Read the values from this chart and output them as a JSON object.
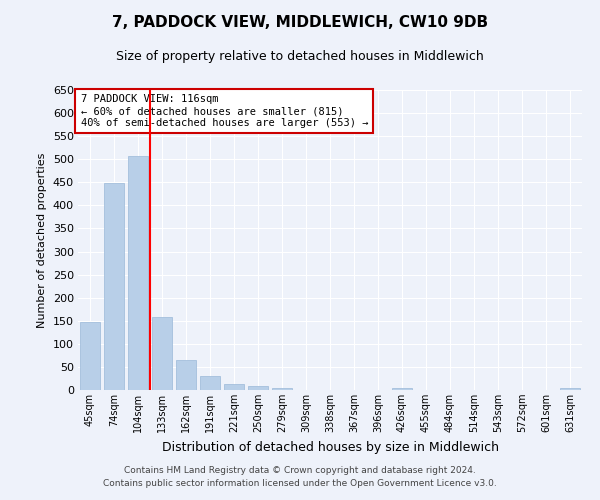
{
  "title": "7, PADDOCK VIEW, MIDDLEWICH, CW10 9DB",
  "subtitle": "Size of property relative to detached houses in Middlewich",
  "xlabel": "Distribution of detached houses by size in Middlewich",
  "ylabel": "Number of detached properties",
  "categories": [
    "45sqm",
    "74sqm",
    "104sqm",
    "133sqm",
    "162sqm",
    "191sqm",
    "221sqm",
    "250sqm",
    "279sqm",
    "309sqm",
    "338sqm",
    "367sqm",
    "396sqm",
    "426sqm",
    "455sqm",
    "484sqm",
    "514sqm",
    "543sqm",
    "572sqm",
    "601sqm",
    "631sqm"
  ],
  "values": [
    148,
    449,
    507,
    158,
    65,
    30,
    12,
    8,
    4,
    0,
    0,
    0,
    0,
    5,
    0,
    0,
    0,
    0,
    0,
    0,
    5
  ],
  "bar_color": "#b8cfe8",
  "bar_edge_color": "#9ab8d8",
  "red_line_x": 2.5,
  "annotation_title": "7 PADDOCK VIEW: 116sqm",
  "annotation_line1": "← 60% of detached houses are smaller (815)",
  "annotation_line2": "40% of semi-detached houses are larger (553) →",
  "ylim": [
    0,
    650
  ],
  "yticks": [
    0,
    50,
    100,
    150,
    200,
    250,
    300,
    350,
    400,
    450,
    500,
    550,
    600,
    650
  ],
  "footer_line1": "Contains HM Land Registry data © Crown copyright and database right 2024.",
  "footer_line2": "Contains public sector information licensed under the Open Government Licence v3.0.",
  "bg_color": "#eef2fa",
  "plot_bg_color": "#eef2fa",
  "grid_color": "#ffffff",
  "annotation_box_color": "#ffffff",
  "annotation_box_edge": "#cc0000",
  "title_fontsize": 11,
  "subtitle_fontsize": 9
}
